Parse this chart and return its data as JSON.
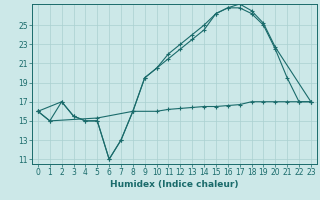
{
  "title": "",
  "xlabel": "Humidex (Indice chaleur)",
  "ylabel": "",
  "bg_color": "#cce8e8",
  "line_color": "#1a6b6b",
  "grid_color": "#aad0d0",
  "xlim": [
    -0.5,
    23.5
  ],
  "ylim": [
    10.5,
    27.2
  ],
  "xticks": [
    0,
    1,
    2,
    3,
    4,
    5,
    6,
    7,
    8,
    9,
    10,
    11,
    12,
    13,
    14,
    15,
    16,
    17,
    18,
    19,
    20,
    21,
    22,
    23
  ],
  "yticks": [
    11,
    13,
    15,
    17,
    19,
    21,
    23,
    25
  ],
  "line1_x": [
    0,
    1,
    2,
    3,
    4,
    5,
    6,
    7,
    8,
    9,
    10,
    11,
    12,
    13,
    14,
    15,
    16,
    17,
    18,
    19,
    20,
    21,
    22,
    23
  ],
  "line1_y": [
    16,
    15,
    17,
    15.5,
    15,
    15,
    11,
    13,
    16,
    19.5,
    20.5,
    21.5,
    22.5,
    23.5,
    24.5,
    26.2,
    26.8,
    26.8,
    26.2,
    25,
    22.5,
    19.5,
    17,
    17
  ],
  "line2_x": [
    0,
    2,
    3,
    4,
    5,
    6,
    7,
    8,
    9,
    10,
    11,
    12,
    13,
    14,
    15,
    16,
    17,
    18,
    19,
    20,
    23
  ],
  "line2_y": [
    16,
    17,
    15.5,
    15,
    15,
    11,
    13,
    16,
    19.5,
    20.5,
    22,
    23,
    24,
    25,
    26.2,
    26.8,
    27.2,
    26.5,
    25.2,
    22.7,
    17
  ],
  "line3_x": [
    0,
    1,
    5,
    8,
    10,
    11,
    12,
    13,
    14,
    15,
    16,
    17,
    18,
    19,
    20,
    21,
    22,
    23
  ],
  "line3_y": [
    16,
    15,
    15.3,
    16,
    16,
    16.2,
    16.3,
    16.4,
    16.5,
    16.5,
    16.6,
    16.7,
    17,
    17,
    17,
    17,
    17,
    17
  ]
}
